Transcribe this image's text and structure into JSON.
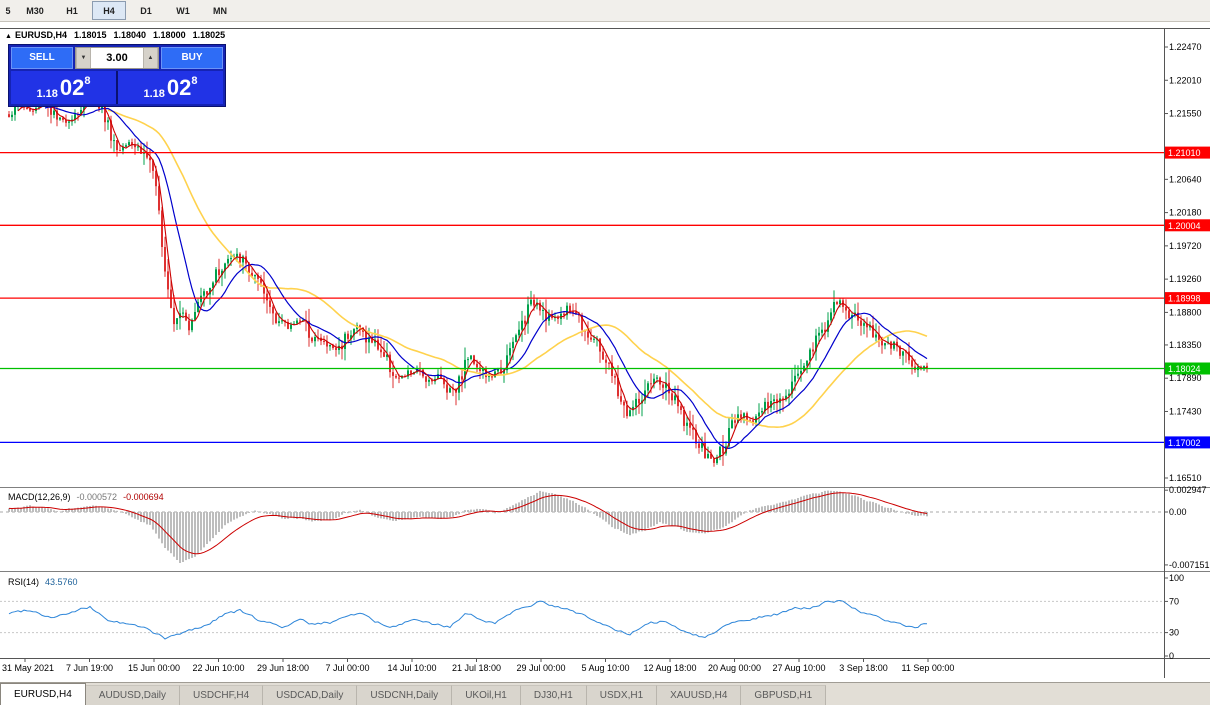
{
  "toolbar": {
    "timeframes": [
      {
        "label": "5"
      },
      {
        "label": "M30"
      },
      {
        "label": "H1"
      },
      {
        "label": "H4",
        "active": true
      },
      {
        "label": "D1"
      },
      {
        "label": "W1"
      },
      {
        "label": "MN"
      }
    ]
  },
  "quote_header": {
    "collapse_icon": "▲",
    "symbol": "EURUSD,H4",
    "open": "1.18015",
    "high": "1.18040",
    "low": "1.18000",
    "close": "1.18025"
  },
  "trade_panel": {
    "sell_label": "SELL",
    "buy_label": "BUY",
    "volume": "3.00",
    "sell_price": {
      "prefix": "1.18",
      "big": "02",
      "sup": "8"
    },
    "buy_price": {
      "prefix": "1.18",
      "big": "02",
      "sup": "8"
    },
    "colors": {
      "panel": "#1523B4",
      "button": "#2E6CF6",
      "price_bg": "#2133E6",
      "spin_bg": "#D6D2CA"
    }
  },
  "chart_data": [
    {
      "type": "candlestick",
      "title": "EURUSD,H4",
      "y_ticks": [
        "1.22470",
        "1.22010",
        "1.21550",
        "1.20640",
        "1.20180",
        "1.19720",
        "1.19260",
        "1.18800",
        "1.18350",
        "1.17890",
        "1.17430",
        "1.16510"
      ],
      "ylim": [
        1.164,
        1.22733
      ],
      "levels": [
        {
          "price": 1.2101,
          "label": "1.21010",
          "color": "#FF0000"
        },
        {
          "price": 1.20004,
          "label": "1.20004",
          "color": "#FF0000"
        },
        {
          "price": 1.18998,
          "label": "1.18998",
          "color": "#FF0000"
        },
        {
          "price": 1.18024,
          "label": "1.18024",
          "color": "#00C000"
        },
        {
          "price": 1.17002,
          "label": "1.17002",
          "color": "#0000FF"
        }
      ],
      "x_labels": [
        "31 May 2021",
        "7 Jun 19:00",
        "15 Jun 00:00",
        "22 Jun 10:00",
        "29 Jun 18:00",
        "7 Jul 00:00",
        "14 Jul 10:00",
        "21 Jul 18:00",
        "29 Jul 00:00",
        "5 Aug 10:00",
        "12 Aug 18:00",
        "20 Aug 00:00",
        "27 Aug 10:00",
        "3 Sep 18:00",
        "11 Sep 00:00"
      ],
      "colors": {
        "up": "#00A14B",
        "down": "#DE3131",
        "ma_fast": "#CC0000",
        "ma_mid": "#0000CC",
        "ma_slow": "#FFD24D"
      },
      "price_path": [
        [
          8,
          1.2153
        ],
        [
          20,
          1.2167
        ],
        [
          32,
          1.2157
        ],
        [
          45,
          1.2174
        ],
        [
          58,
          1.2143
        ],
        [
          70,
          1.2149
        ],
        [
          82,
          1.2163
        ],
        [
          92,
          1.2181
        ],
        [
          100,
          1.2167
        ],
        [
          108,
          1.2139
        ],
        [
          118,
          1.2102
        ],
        [
          128,
          1.2119
        ],
        [
          138,
          1.2108
        ],
        [
          150,
          1.2091
        ],
        [
          158,
          1.2029
        ],
        [
          166,
          1.1932
        ],
        [
          174,
          1.1872
        ],
        [
          182,
          1.1886
        ],
        [
          190,
          1.1856
        ],
        [
          198,
          1.1894
        ],
        [
          208,
          1.1917
        ],
        [
          218,
          1.1936
        ],
        [
          228,
          1.1952
        ],
        [
          238,
          1.1958
        ],
        [
          248,
          1.1941
        ],
        [
          258,
          1.1919
        ],
        [
          268,
          1.1892
        ],
        [
          278,
          1.1872
        ],
        [
          288,
          1.1858
        ],
        [
          298,
          1.1872
        ],
        [
          308,
          1.1856
        ],
        [
          318,
          1.1842
        ],
        [
          328,
          1.1834
        ],
        [
          338,
          1.1828
        ],
        [
          348,
          1.1853
        ],
        [
          358,
          1.1861
        ],
        [
          368,
          1.1842
        ],
        [
          378,
          1.1834
        ],
        [
          388,
          1.1811
        ],
        [
          398,
          1.1786
        ],
        [
          408,
          1.1795
        ],
        [
          418,
          1.18
        ],
        [
          428,
          1.1786
        ],
        [
          438,
          1.1792
        ],
        [
          448,
          1.1773
        ],
        [
          458,
          1.1781
        ],
        [
          468,
          1.182
        ],
        [
          478,
          1.1809
        ],
        [
          488,
          1.1789
        ],
        [
          498,
          1.1795
        ],
        [
          508,
          1.1817
        ],
        [
          518,
          1.1853
        ],
        [
          528,
          1.1883
        ],
        [
          536,
          1.1897
        ],
        [
          546,
          1.1878
        ],
        [
          556,
          1.1869
        ],
        [
          566,
          1.1886
        ],
        [
          576,
          1.188
        ],
        [
          586,
          1.1856
        ],
        [
          596,
          1.1836
        ],
        [
          606,
          1.1814
        ],
        [
          616,
          1.1778
        ],
        [
          626,
          1.1739
        ],
        [
          636,
          1.1753
        ],
        [
          646,
          1.1767
        ],
        [
          656,
          1.1789
        ],
        [
          666,
          1.1775
        ],
        [
          676,
          1.1753
        ],
        [
          686,
          1.1728
        ],
        [
          696,
          1.1701
        ],
        [
          706,
          1.1683
        ],
        [
          714,
          1.1673
        ],
        [
          722,
          1.1692
        ],
        [
          732,
          1.172
        ],
        [
          742,
          1.1737
        ],
        [
          752,
          1.1731
        ],
        [
          762,
          1.1745
        ],
        [
          772,
          1.1753
        ],
        [
          782,
          1.1767
        ],
        [
          792,
          1.1783
        ],
        [
          802,
          1.1806
        ],
        [
          812,
          1.1831
        ],
        [
          822,
          1.1856
        ],
        [
          832,
          1.188
        ],
        [
          838,
          1.1897
        ],
        [
          846,
          1.1883
        ],
        [
          856,
          1.1872
        ],
        [
          866,
          1.1861
        ],
        [
          876,
          1.1847
        ],
        [
          886,
          1.1836
        ],
        [
          896,
          1.1831
        ],
        [
          906,
          1.182
        ],
        [
          916,
          1.1806
        ],
        [
          928,
          1.18025
        ]
      ]
    },
    {
      "type": "macd",
      "label": "MACD(12,26,9)",
      "main_value": "-0.000572",
      "signal_value": "-0.000694",
      "y_ticks": [
        "0.002947",
        "0.00",
        "-0.007151"
      ],
      "colors": {
        "hist": "#BDBDBD",
        "signal": "#CC0000"
      },
      "path": [
        [
          10,
          0.0005
        ],
        [
          30,
          0.0008
        ],
        [
          60,
          0.0002
        ],
        [
          90,
          0.001
        ],
        [
          110,
          0.0005
        ],
        [
          130,
          -0.0005
        ],
        [
          150,
          -0.0018
        ],
        [
          165,
          -0.0048
        ],
        [
          180,
          -0.0069
        ],
        [
          195,
          -0.006
        ],
        [
          210,
          -0.004
        ],
        [
          225,
          -0.0018
        ],
        [
          240,
          -0.0005
        ],
        [
          255,
          0.0003
        ],
        [
          270,
          -0.0003
        ],
        [
          285,
          -0.001
        ],
        [
          300,
          -0.0008
        ],
        [
          315,
          -0.0012
        ],
        [
          330,
          -0.001
        ],
        [
          345,
          -0.0002
        ],
        [
          360,
          0.0002
        ],
        [
          375,
          -0.0005
        ],
        [
          390,
          -0.0012
        ],
        [
          405,
          -0.001
        ],
        [
          420,
          -0.0006
        ],
        [
          435,
          -0.001
        ],
        [
          450,
          -0.0008
        ],
        [
          465,
          0.0002
        ],
        [
          480,
          0.0004
        ],
        [
          495,
          -0.0002
        ],
        [
          510,
          0.0006
        ],
        [
          525,
          0.0018
        ],
        [
          540,
          0.0028
        ],
        [
          555,
          0.0024
        ],
        [
          570,
          0.0016
        ],
        [
          585,
          0.0007
        ],
        [
          600,
          -0.0008
        ],
        [
          615,
          -0.0022
        ],
        [
          630,
          -0.003
        ],
        [
          645,
          -0.0024
        ],
        [
          660,
          -0.0015
        ],
        [
          675,
          -0.002
        ],
        [
          690,
          -0.0028
        ],
        [
          705,
          -0.003
        ],
        [
          720,
          -0.0022
        ],
        [
          735,
          -0.001
        ],
        [
          750,
          0.0002
        ],
        [
          765,
          0.0008
        ],
        [
          780,
          0.0013
        ],
        [
          795,
          0.0018
        ],
        [
          810,
          0.0023
        ],
        [
          825,
          0.0027
        ],
        [
          840,
          0.0028
        ],
        [
          855,
          0.0022
        ],
        [
          870,
          0.0014
        ],
        [
          885,
          0.0007
        ],
        [
          900,
          0.0001
        ],
        [
          915,
          -0.0005
        ],
        [
          928,
          -0.000572
        ]
      ]
    },
    {
      "type": "rsi",
      "label": "RSI(14)",
      "value": "43.5760",
      "y_ticks": [
        "100",
        "70",
        "30",
        "0"
      ],
      "levels": [
        70,
        30
      ],
      "colors": {
        "line": "#2E86D9"
      },
      "path": [
        [
          10,
          55
        ],
        [
          30,
          60
        ],
        [
          50,
          50
        ],
        [
          70,
          55
        ],
        [
          90,
          62
        ],
        [
          110,
          45
        ],
        [
          130,
          40
        ],
        [
          150,
          34
        ],
        [
          165,
          22
        ],
        [
          180,
          28
        ],
        [
          195,
          35
        ],
        [
          210,
          42
        ],
        [
          225,
          55
        ],
        [
          240,
          58
        ],
        [
          255,
          48
        ],
        [
          270,
          42
        ],
        [
          285,
          38
        ],
        [
          300,
          45
        ],
        [
          315,
          40
        ],
        [
          330,
          43
        ],
        [
          345,
          52
        ],
        [
          360,
          55
        ],
        [
          375,
          45
        ],
        [
          390,
          35
        ],
        [
          405,
          42
        ],
        [
          420,
          45
        ],
        [
          435,
          40
        ],
        [
          450,
          38
        ],
        [
          465,
          52
        ],
        [
          480,
          48
        ],
        [
          495,
          43
        ],
        [
          510,
          55
        ],
        [
          525,
          65
        ],
        [
          540,
          70
        ],
        [
          555,
          62
        ],
        [
          570,
          60
        ],
        [
          585,
          52
        ],
        [
          600,
          42
        ],
        [
          615,
          32
        ],
        [
          630,
          28
        ],
        [
          645,
          38
        ],
        [
          660,
          45
        ],
        [
          675,
          38
        ],
        [
          690,
          30
        ],
        [
          705,
          24
        ],
        [
          720,
          35
        ],
        [
          735,
          45
        ],
        [
          750,
          48
        ],
        [
          765,
          52
        ],
        [
          780,
          55
        ],
        [
          795,
          60
        ],
        [
          810,
          62
        ],
        [
          825,
          68
        ],
        [
          840,
          72
        ],
        [
          855,
          60
        ],
        [
          870,
          52
        ],
        [
          885,
          45
        ],
        [
          900,
          40
        ],
        [
          915,
          38
        ],
        [
          928,
          43.576
        ]
      ]
    }
  ],
  "tabs": [
    {
      "label": "EURUSD,H4",
      "active": true
    },
    {
      "label": "AUDUSD,Daily"
    },
    {
      "label": "USDCHF,H4"
    },
    {
      "label": "USDCAD,Daily"
    },
    {
      "label": "USDCNH,Daily"
    },
    {
      "label": "UKOil,H1"
    },
    {
      "label": "DJ30,H1"
    },
    {
      "label": "USDX,H1"
    },
    {
      "label": "XAUUSD,H4"
    },
    {
      "label": "GBPUSD,H1"
    }
  ]
}
